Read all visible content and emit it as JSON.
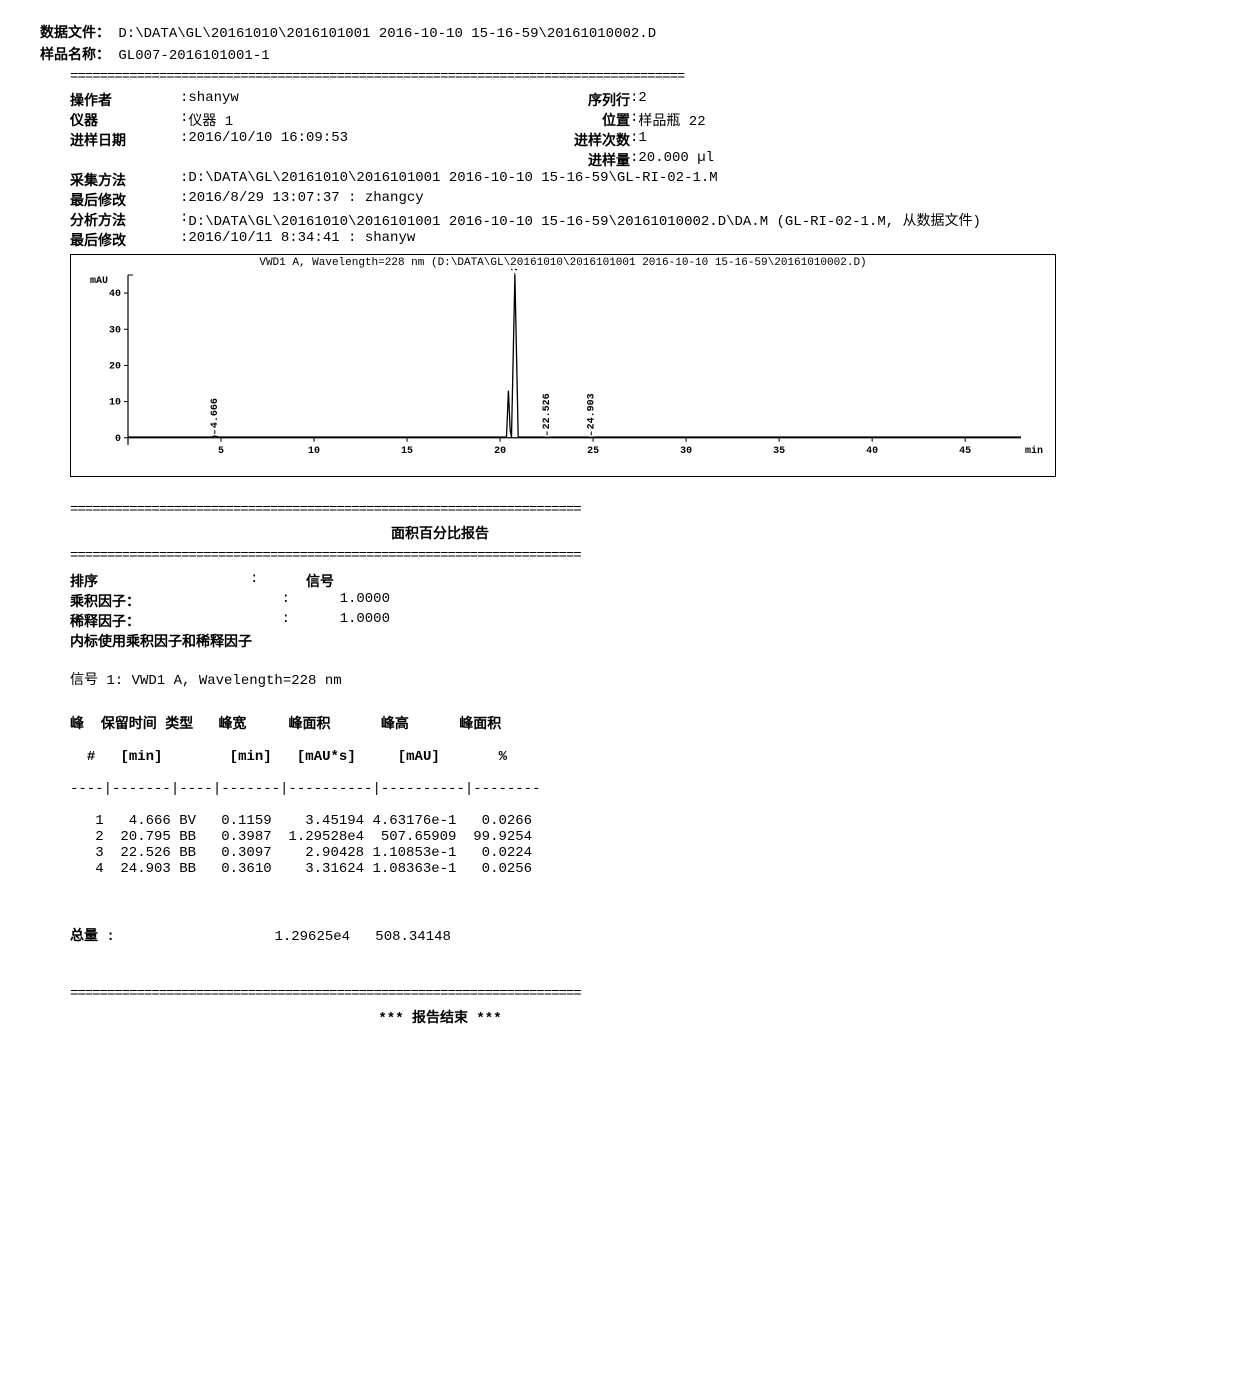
{
  "header": {
    "datafile_label": "数据文件：",
    "datafile_value": "D:\\DATA\\GL\\20161010\\2016101001 2016-10-10 15-16-59\\20161010002.D",
    "samplename_label": "样品名称：",
    "samplename_value": "GL007-2016101001-1"
  },
  "meta": {
    "operator_label": "操作者",
    "operator_value": "shanyw",
    "seqrow_label": "序列行",
    "seqrow_value": "2",
    "instrument_label": "仪器",
    "instrument_value": "仪器 1",
    "position_label": "位置",
    "position_value": "样品瓶 22",
    "injdate_label": "进样日期",
    "injdate_value": "2016/10/10 16:09:53",
    "injcount_label": "进样次数",
    "injcount_value": "1",
    "injvol_label": "进样量",
    "injvol_value": "20.000 µl",
    "acqmethod_label": "采集方法",
    "acqmethod_value": "D:\\DATA\\GL\\20161010\\2016101001 2016-10-10 15-16-59\\GL-RI-02-1.M",
    "lastmod1_label": "最后修改",
    "lastmod1_value": "2016/8/29 13:07:37 :   zhangcy",
    "anamethod_label": "分析方法",
    "anamethod_value": "D:\\DATA\\GL\\20161010\\2016101001 2016-10-10 15-16-59\\20161010002.D\\DA.M (GL-RI-02-1.M, 从数据文件)",
    "lastmod2_label": "最后修改",
    "lastmod2_value": "2016/10/11 8:34:41 :   shanyw"
  },
  "chart": {
    "title": "VWD1 A, Wavelength=228 nm (D:\\DATA\\GL\\20161010\\2016101001 2016-10-10 15-16-59\\20161010002.D)",
    "y_unit": "mAU",
    "x_unit": "min",
    "xlim": [
      0,
      48
    ],
    "ylim": [
      -2,
      45
    ],
    "xticks": [
      5,
      10,
      15,
      20,
      25,
      30,
      35,
      40,
      45
    ],
    "yticks": [
      0,
      10,
      20,
      30,
      40
    ],
    "line_color": "#000000",
    "background_color": "#ffffff",
    "tick_font_size": 10,
    "peaks": [
      {
        "rt": 4.666,
        "height": 0.46,
        "label": "4.666"
      },
      {
        "rt": 20.795,
        "height": 45.0,
        "label": "20.795",
        "clip": true,
        "shoulder": 13
      },
      {
        "rt": 22.526,
        "height": 0.11,
        "label": "22.526"
      },
      {
        "rt": 24.903,
        "height": 0.11,
        "label": "24.903"
      }
    ]
  },
  "report": {
    "title": "面积百分比报告",
    "sort_label": "排序",
    "sort_value": "信号",
    "mult_label": "乘积因子：",
    "mult_value": "1.0000",
    "dil_label": "稀释因子：",
    "dil_value": "1.0000",
    "istd_note": "内标使用乘积因子和稀释因子",
    "signal_line": "信号 1: VWD1 A, Wavelength=228 nm",
    "columns": {
      "peak": "峰",
      "peak2": "#",
      "rt": "保留时间",
      "rt2": "[min]",
      "type": "类型",
      "width": "峰宽",
      "width2": "[min]",
      "area": "峰面积",
      "area2": "[mAU*s]",
      "height": "峰高",
      "height2": "[mAU]",
      "areapct": "峰面积",
      "areapct2": "%"
    },
    "rows": [
      {
        "n": "1",
        "rt": "4.666",
        "type": "BV",
        "width": "0.1159",
        "area": "3.45194",
        "height": "4.63176e-1",
        "pct": "0.0266"
      },
      {
        "n": "2",
        "rt": "20.795",
        "type": "BB",
        "width": "0.3987",
        "area": "1.29528e4",
        "height": "507.65909",
        "pct": "99.9254"
      },
      {
        "n": "3",
        "rt": "22.526",
        "type": "BB",
        "width": "0.3097",
        "area": "2.90428",
        "height": "1.10853e-1",
        "pct": "0.0224"
      },
      {
        "n": "4",
        "rt": "24.903",
        "type": "BB",
        "width": "0.3610",
        "area": "3.31624",
        "height": "1.08363e-1",
        "pct": "0.0256"
      }
    ],
    "totals_label": "总量 :",
    "totals_area": "1.29625e4",
    "totals_height": "508.34148",
    "end_text": "*** 报告结束 ***"
  },
  "style": {
    "text_color": "#000000",
    "bg_color": "#ffffff",
    "mono_font": "Courier New",
    "base_fontsize_pt": 11
  }
}
